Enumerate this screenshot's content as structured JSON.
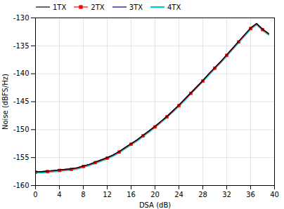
{
  "chart_data": {
    "type": "line",
    "xlabel": "DSA (dB)",
    "ylabel": "Noise (dBFS/Hz)",
    "x": [
      0,
      1,
      2,
      3,
      4,
      5,
      6,
      7,
      8,
      9,
      10,
      11,
      12,
      13,
      14,
      15,
      16,
      17,
      18,
      19,
      20,
      21,
      22,
      23,
      24,
      25,
      26,
      27,
      28,
      29,
      30,
      31,
      32,
      33,
      34,
      35,
      36,
      37,
      38,
      39
    ],
    "xlim": [
      0,
      40
    ],
    "xticks": [
      0,
      4,
      8,
      12,
      16,
      20,
      24,
      28,
      32,
      36,
      40
    ],
    "ylim": [
      -160,
      -130
    ],
    "yticks": [
      -160,
      -155,
      -150,
      -145,
      -140,
      -135,
      -130
    ],
    "grid": true,
    "legend": "upper left",
    "series": [
      {
        "name": "1TX",
        "color": "#000000",
        "marker": "plus",
        "values": [
          -157.5,
          -157.5,
          -157.4,
          -157.3,
          -157.2,
          -157.1,
          -157.0,
          -156.8,
          -156.5,
          -156.2,
          -155.8,
          -155.4,
          -155.0,
          -154.5,
          -153.9,
          -153.2,
          -152.5,
          -151.8,
          -151.0,
          -150.2,
          -149.4,
          -148.5,
          -147.6,
          -146.6,
          -145.6,
          -144.5,
          -143.4,
          -142.3,
          -141.2,
          -140.0,
          -138.9,
          -137.8,
          -136.6,
          -135.4,
          -134.2,
          -133.0,
          -131.8,
          -131.0,
          -132.0,
          -132.8
        ]
      },
      {
        "name": "2TX",
        "color": "#ff0000",
        "marker": "square",
        "values": [
          -157.6,
          -157.6,
          -157.5,
          -157.4,
          -157.3,
          -157.2,
          -157.1,
          -156.9,
          -156.6,
          -156.3,
          -155.9,
          -155.5,
          -155.1,
          -154.6,
          -154.0,
          -153.3,
          -152.6,
          -151.9,
          -151.1,
          -150.3,
          -149.5,
          -148.6,
          -147.7,
          -146.7,
          -145.7,
          -144.6,
          -143.5,
          -142.4,
          -141.3,
          -140.1,
          -139.0,
          -137.9,
          -136.7,
          -135.5,
          -134.3,
          -133.1,
          -131.9,
          -131.1,
          -132.1,
          -132.9
        ]
      },
      {
        "name": "3TX",
        "color": "#00008b",
        "marker": "plus",
        "values": [
          -157.5,
          -157.5,
          -157.4,
          -157.3,
          -157.2,
          -157.1,
          -157.0,
          -156.8,
          -156.5,
          -156.2,
          -155.8,
          -155.4,
          -155.0,
          -154.5,
          -153.9,
          -153.2,
          -152.5,
          -151.8,
          -151.0,
          -150.2,
          -149.4,
          -148.5,
          -147.6,
          -146.6,
          -145.6,
          -144.5,
          -143.4,
          -142.3,
          -141.2,
          -140.0,
          -138.9,
          -137.8,
          -136.6,
          -135.4,
          -134.2,
          -133.0,
          -131.8,
          -131.0,
          -132.0,
          -132.8
        ]
      },
      {
        "name": "4TX",
        "color": "#00cccc",
        "values": [
          -157.7,
          -157.7,
          -157.6,
          -157.5,
          -157.4,
          -157.3,
          -157.2,
          -157.0,
          -156.7,
          -156.4,
          -156.0,
          -155.6,
          -155.2,
          -154.7,
          -154.1,
          -153.4,
          -152.7,
          -152.0,
          -151.2,
          -150.4,
          -149.6,
          -148.7,
          -147.8,
          -146.8,
          -145.8,
          -144.7,
          -143.6,
          -142.5,
          -141.4,
          -140.2,
          -139.1,
          -138.0,
          -136.8,
          -135.6,
          -134.4,
          -133.2,
          -132.0,
          -131.2,
          -132.2,
          -133.0
        ]
      }
    ]
  }
}
